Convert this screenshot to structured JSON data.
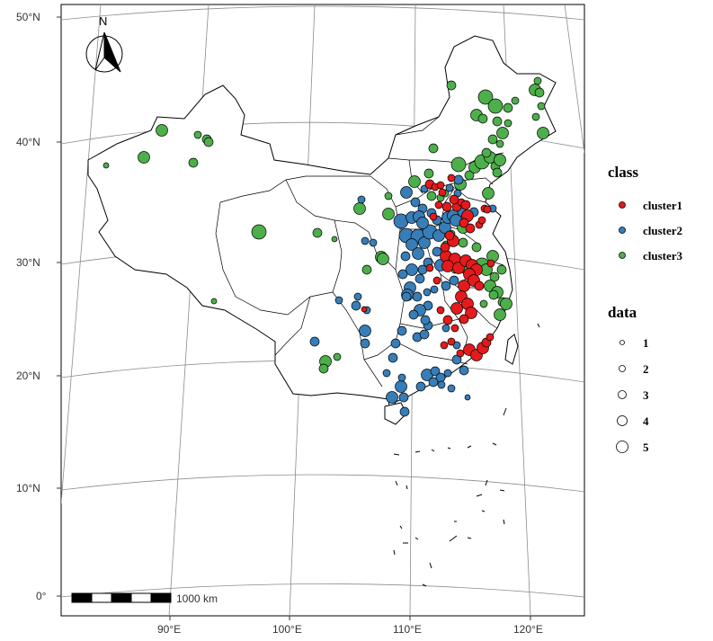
{
  "map": {
    "north_label": "N",
    "scale_bar_label": "1000 km",
    "latitude_labels": [
      "50°N",
      "40°N",
      "30°N",
      "20°N",
      "10°N",
      "0°"
    ],
    "longitude_labels": [
      "90°E",
      "100°E",
      "110°E",
      "120°E"
    ]
  },
  "legend": {
    "class_title": "class",
    "class_items": [
      {
        "label": "cluster1",
        "color": "#e41a1c"
      },
      {
        "label": "cluster2",
        "color": "#377eb8"
      },
      {
        "label": "cluster3",
        "color": "#4daf4a"
      }
    ],
    "size_title": "data",
    "size_items": [
      "1",
      "2",
      "3",
      "4",
      "5"
    ]
  },
  "colors": {
    "cluster1": "#e41a1c",
    "cluster2": "#377eb8",
    "cluster3": "#4daf4a",
    "grid": "#8c8c8c",
    "boundary": "#000000"
  }
}
